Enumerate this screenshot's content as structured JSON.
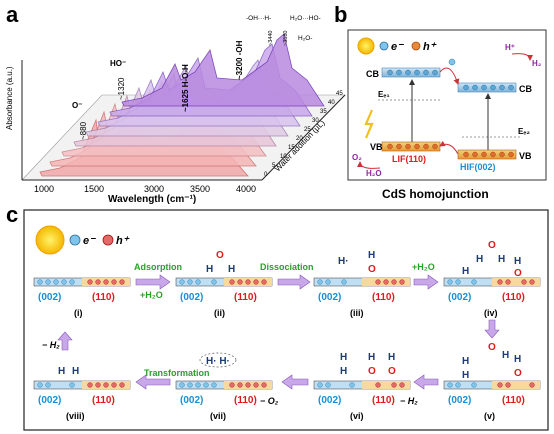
{
  "panel_a": {
    "label": "a",
    "y_axis_label": "Absorbance (a.u.)",
    "x_axis_label": "Wavelength (cm⁻¹)",
    "x_ticks": [
      "1000",
      "1500",
      "3000",
      "3500",
      "4000"
    ],
    "z_axis_label": "Water addition (μL)",
    "z_ticks": [
      "0",
      "5",
      "10",
      "15",
      "20",
      "25",
      "30",
      "35",
      "40",
      "45"
    ],
    "peaks": [
      "O⁻",
      "~880",
      "HO⁻",
      "~1320",
      "~1625 H-O-H",
      "~3200 -OH",
      "-OH···H-",
      "~3440",
      "H₂O···HO-",
      "~3580",
      "H₂O-"
    ]
  },
  "panel_b": {
    "label": "b",
    "electron": "e⁻",
    "hole": "h⁺",
    "cb_left": "CB",
    "cb_right": "CB",
    "vb_left": "VB",
    "vb_right": "VB",
    "ef1": "Eₑ₁",
    "ef2": "Eₑ₂",
    "hplus": "H⁺",
    "h2": "H₂",
    "o2": "O₂",
    "h2o": "H₂O",
    "lif": "LIF(110)",
    "hif": "HIF(002)",
    "title": "CdS homojunction"
  },
  "panel_c": {
    "label": "c",
    "electron": "e⁻",
    "hole": "h⁺",
    "facet_002": "(002)",
    "facet_110": "(110)",
    "step_labels": [
      "(i)",
      "(ii)",
      "(iii)",
      "(iv)",
      "(v)",
      "(vi)",
      "(vii)",
      "(viii)"
    ],
    "adsorption": "Adsorption",
    "plus_h2o_1": "+H₂O",
    "dissociation": "Dissociation",
    "plus_h2o_2": "+H₂O",
    "transformation": "Transformation",
    "minus_o2": "− O₂",
    "minus_h2_1": "− H₂",
    "minus_h2_2": "− H₂"
  },
  "colors": {
    "blue_facet": "#1a8fd0",
    "red_facet": "#e0191e",
    "green_text": "#2aa02a",
    "arrow_purple": "#b48ad8"
  }
}
